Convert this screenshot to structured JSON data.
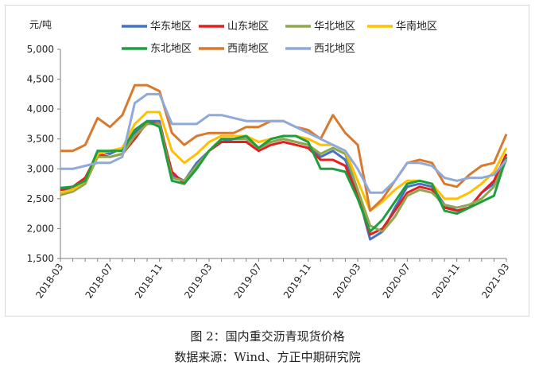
{
  "caption": {
    "line1": "图 2：国内重交沥青现货价格",
    "line2": "数据来源：Wind、方正中期研究院"
  },
  "chart_data": {
    "type": "line",
    "unit_label": "元/吨",
    "ylim": [
      1500,
      5000
    ],
    "yticks": [
      1500,
      2000,
      2500,
      3000,
      3500,
      4000,
      4500,
      5000
    ],
    "ytick_labels": [
      "1,500",
      "2,000",
      "2,500",
      "3,000",
      "3,500",
      "4,000",
      "4,500",
      "5,000"
    ],
    "xlim": [
      "2018-03",
      "2021-03"
    ],
    "xtick_labels": [
      "2018-03",
      "2018-07",
      "2018-11",
      "2019-03",
      "2019-07",
      "2019-11",
      "2020-03",
      "2020-07",
      "2020-11",
      "2021-03"
    ],
    "grid": false,
    "legend_position": "top",
    "series": [
      {
        "name": "华东地区",
        "color": "#4472C4",
        "points": [
          [
            "2018-03",
            2650
          ],
          [
            "2018-04",
            2650
          ],
          [
            "2018-05",
            2800
          ],
          [
            "2018-06",
            3300
          ],
          [
            "2018-07",
            3250
          ],
          [
            "2018-08",
            3350
          ],
          [
            "2018-09",
            3600
          ],
          [
            "2018-10",
            3800
          ],
          [
            "2018-11",
            3800
          ],
          [
            "2018-12",
            2900
          ],
          [
            "2019-01",
            2800
          ],
          [
            "2019-02",
            3100
          ],
          [
            "2019-03",
            3300
          ],
          [
            "2019-04",
            3450
          ],
          [
            "2019-05",
            3500
          ],
          [
            "2019-06",
            3500
          ],
          [
            "2019-07",
            3350
          ],
          [
            "2019-08",
            3450
          ],
          [
            "2019-09",
            3500
          ],
          [
            "2019-10",
            3450
          ],
          [
            "2019-11",
            3400
          ],
          [
            "2019-12",
            3200
          ],
          [
            "2020-01",
            3300
          ],
          [
            "2020-02",
            3150
          ],
          [
            "2020-03",
            2600
          ],
          [
            "2020-04",
            1820
          ],
          [
            "2020-05",
            1950
          ],
          [
            "2020-06",
            2350
          ],
          [
            "2020-07",
            2700
          ],
          [
            "2020-08",
            2750
          ],
          [
            "2020-09",
            2700
          ],
          [
            "2020-10",
            2400
          ],
          [
            "2020-11",
            2300
          ],
          [
            "2020-12",
            2350
          ],
          [
            "2021-01",
            2600
          ],
          [
            "2021-02",
            2750
          ],
          [
            "2021-03",
            3150
          ]
        ]
      },
      {
        "name": "山东地区",
        "color": "#E32020",
        "points": [
          [
            "2018-03",
            2650
          ],
          [
            "2018-04",
            2700
          ],
          [
            "2018-05",
            2850
          ],
          [
            "2018-06",
            3250
          ],
          [
            "2018-07",
            3200
          ],
          [
            "2018-08",
            3250
          ],
          [
            "2018-09",
            3500
          ],
          [
            "2018-10",
            3780
          ],
          [
            "2018-11",
            3750
          ],
          [
            "2018-12",
            2950
          ],
          [
            "2019-01",
            2750
          ],
          [
            "2019-02",
            3050
          ],
          [
            "2019-03",
            3300
          ],
          [
            "2019-04",
            3450
          ],
          [
            "2019-05",
            3450
          ],
          [
            "2019-06",
            3450
          ],
          [
            "2019-07",
            3300
          ],
          [
            "2019-08",
            3400
          ],
          [
            "2019-09",
            3450
          ],
          [
            "2019-10",
            3400
          ],
          [
            "2019-11",
            3350
          ],
          [
            "2019-12",
            3150
          ],
          [
            "2020-01",
            3150
          ],
          [
            "2020-02",
            3050
          ],
          [
            "2020-03",
            2550
          ],
          [
            "2020-04",
            1900
          ],
          [
            "2020-05",
            2000
          ],
          [
            "2020-06",
            2300
          ],
          [
            "2020-07",
            2600
          ],
          [
            "2020-08",
            2700
          ],
          [
            "2020-09",
            2650
          ],
          [
            "2020-10",
            2350
          ],
          [
            "2020-11",
            2300
          ],
          [
            "2020-12",
            2350
          ],
          [
            "2021-01",
            2600
          ],
          [
            "2021-02",
            2800
          ],
          [
            "2021-03",
            3250
          ]
        ]
      },
      {
        "name": "华北地区",
        "color": "#8FA84E",
        "points": [
          [
            "2018-03",
            2560
          ],
          [
            "2018-04",
            2620
          ],
          [
            "2018-05",
            2750
          ],
          [
            "2018-06",
            3200
          ],
          [
            "2018-07",
            3200
          ],
          [
            "2018-08",
            3250
          ],
          [
            "2018-09",
            3550
          ],
          [
            "2018-10",
            3750
          ],
          [
            "2018-11",
            3750
          ],
          [
            "2018-12",
            2850
          ],
          [
            "2019-01",
            2800
          ],
          [
            "2019-02",
            3050
          ],
          [
            "2019-03",
            3300
          ],
          [
            "2019-04",
            3500
          ],
          [
            "2019-05",
            3500
          ],
          [
            "2019-06",
            3500
          ],
          [
            "2019-07",
            3350
          ],
          [
            "2019-08",
            3450
          ],
          [
            "2019-09",
            3500
          ],
          [
            "2019-10",
            3450
          ],
          [
            "2019-11",
            3400
          ],
          [
            "2019-12",
            3250
          ],
          [
            "2020-01",
            3350
          ],
          [
            "2020-02",
            3250
          ],
          [
            "2020-03",
            2650
          ],
          [
            "2020-04",
            2050
          ],
          [
            "2020-05",
            1950
          ],
          [
            "2020-06",
            2200
          ],
          [
            "2020-07",
            2550
          ],
          [
            "2020-08",
            2650
          ],
          [
            "2020-09",
            2600
          ],
          [
            "2020-10",
            2400
          ],
          [
            "2020-11",
            2350
          ],
          [
            "2020-12",
            2400
          ],
          [
            "2021-01",
            2500
          ],
          [
            "2021-02",
            2700
          ],
          [
            "2021-03",
            3150
          ]
        ]
      },
      {
        "name": "华南地区",
        "color": "#FFC000",
        "points": [
          [
            "2018-03",
            2600
          ],
          [
            "2018-04",
            2650
          ],
          [
            "2018-05",
            2800
          ],
          [
            "2018-06",
            3250
          ],
          [
            "2018-07",
            3300
          ],
          [
            "2018-08",
            3350
          ],
          [
            "2018-09",
            3750
          ],
          [
            "2018-10",
            3950
          ],
          [
            "2018-11",
            3950
          ],
          [
            "2018-12",
            3300
          ],
          [
            "2019-01",
            3100
          ],
          [
            "2019-02",
            3250
          ],
          [
            "2019-03",
            3450
          ],
          [
            "2019-04",
            3550
          ],
          [
            "2019-05",
            3550
          ],
          [
            "2019-06",
            3550
          ],
          [
            "2019-07",
            3450
          ],
          [
            "2019-08",
            3500
          ],
          [
            "2019-09",
            3550
          ],
          [
            "2019-10",
            3550
          ],
          [
            "2019-11",
            3500
          ],
          [
            "2019-12",
            3400
          ],
          [
            "2020-01",
            3400
          ],
          [
            "2020-02",
            3300
          ],
          [
            "2020-03",
            2800
          ],
          [
            "2020-04",
            2300
          ],
          [
            "2020-05",
            2450
          ],
          [
            "2020-06",
            2650
          ],
          [
            "2020-07",
            2800
          ],
          [
            "2020-08",
            2800
          ],
          [
            "2020-09",
            2750
          ],
          [
            "2020-10",
            2500
          ],
          [
            "2020-11",
            2500
          ],
          [
            "2020-12",
            2600
          ],
          [
            "2021-01",
            2750
          ],
          [
            "2021-02",
            2950
          ],
          [
            "2021-03",
            3350
          ]
        ]
      },
      {
        "name": "东北地区",
        "color": "#1E9E3E",
        "points": [
          [
            "2018-03",
            2680
          ],
          [
            "2018-04",
            2700
          ],
          [
            "2018-05",
            2800
          ],
          [
            "2018-06",
            3300
          ],
          [
            "2018-07",
            3300
          ],
          [
            "2018-08",
            3300
          ],
          [
            "2018-09",
            3650
          ],
          [
            "2018-10",
            3800
          ],
          [
            "2018-11",
            3700
          ],
          [
            "2018-12",
            2800
          ],
          [
            "2019-01",
            2750
          ],
          [
            "2019-02",
            3000
          ],
          [
            "2019-03",
            3300
          ],
          [
            "2019-04",
            3500
          ],
          [
            "2019-05",
            3500
          ],
          [
            "2019-06",
            3550
          ],
          [
            "2019-07",
            3350
          ],
          [
            "2019-08",
            3500
          ],
          [
            "2019-09",
            3550
          ],
          [
            "2019-10",
            3550
          ],
          [
            "2019-11",
            3450
          ],
          [
            "2019-12",
            3000
          ],
          [
            "2020-01",
            3000
          ],
          [
            "2020-02",
            2950
          ],
          [
            "2020-03",
            2500
          ],
          [
            "2020-04",
            1950
          ],
          [
            "2020-05",
            2150
          ],
          [
            "2020-06",
            2450
          ],
          [
            "2020-07",
            2750
          ],
          [
            "2020-08",
            2800
          ],
          [
            "2020-09",
            2750
          ],
          [
            "2020-10",
            2300
          ],
          [
            "2020-11",
            2250
          ],
          [
            "2020-12",
            2350
          ],
          [
            "2021-01",
            2450
          ],
          [
            "2021-02",
            2550
          ],
          [
            "2021-03",
            3200
          ]
        ]
      },
      {
        "name": "西南地区",
        "color": "#D9792E",
        "points": [
          [
            "2018-03",
            3300
          ],
          [
            "2018-04",
            3300
          ],
          [
            "2018-05",
            3400
          ],
          [
            "2018-06",
            3850
          ],
          [
            "2018-07",
            3700
          ],
          [
            "2018-08",
            3900
          ],
          [
            "2018-09",
            4400
          ],
          [
            "2018-10",
            4400
          ],
          [
            "2018-11",
            4300
          ],
          [
            "2018-12",
            3600
          ],
          [
            "2019-01",
            3400
          ],
          [
            "2019-02",
            3550
          ],
          [
            "2019-03",
            3600
          ],
          [
            "2019-04",
            3600
          ],
          [
            "2019-05",
            3600
          ],
          [
            "2019-06",
            3700
          ],
          [
            "2019-07",
            3700
          ],
          [
            "2019-08",
            3800
          ],
          [
            "2019-09",
            3800
          ],
          [
            "2019-10",
            3700
          ],
          [
            "2019-11",
            3650
          ],
          [
            "2019-12",
            3500
          ],
          [
            "2020-01",
            3900
          ],
          [
            "2020-02",
            3600
          ],
          [
            "2020-03",
            3400
          ],
          [
            "2020-04",
            2300
          ],
          [
            "2020-05",
            2500
          ],
          [
            "2020-06",
            2800
          ],
          [
            "2020-07",
            3100
          ],
          [
            "2020-08",
            3150
          ],
          [
            "2020-09",
            3100
          ],
          [
            "2020-10",
            2750
          ],
          [
            "2020-11",
            2700
          ],
          [
            "2020-12",
            2900
          ],
          [
            "2021-01",
            3050
          ],
          [
            "2021-02",
            3100
          ],
          [
            "2021-03",
            3580
          ]
        ]
      },
      {
        "name": "西北地区",
        "color": "#8EA9DB",
        "points": [
          [
            "2018-03",
            3000
          ],
          [
            "2018-04",
            3000
          ],
          [
            "2018-05",
            3050
          ],
          [
            "2018-06",
            3100
          ],
          [
            "2018-07",
            3100
          ],
          [
            "2018-08",
            3200
          ],
          [
            "2018-09",
            4100
          ],
          [
            "2018-10",
            4250
          ],
          [
            "2018-11",
            4250
          ],
          [
            "2018-12",
            3750
          ],
          [
            "2019-01",
            3750
          ],
          [
            "2019-02",
            3750
          ],
          [
            "2019-03",
            3900
          ],
          [
            "2019-04",
            3900
          ],
          [
            "2019-05",
            3850
          ],
          [
            "2019-06",
            3800
          ],
          [
            "2019-07",
            3800
          ],
          [
            "2019-08",
            3800
          ],
          [
            "2019-09",
            3800
          ],
          [
            "2019-10",
            3700
          ],
          [
            "2019-11",
            3600
          ],
          [
            "2019-12",
            3500
          ],
          [
            "2020-01",
            3400
          ],
          [
            "2020-02",
            3300
          ],
          [
            "2020-03",
            3000
          ],
          [
            "2020-04",
            2600
          ],
          [
            "2020-05",
            2600
          ],
          [
            "2020-06",
            2800
          ],
          [
            "2020-07",
            3100
          ],
          [
            "2020-08",
            3100
          ],
          [
            "2020-09",
            3050
          ],
          [
            "2020-10",
            2850
          ],
          [
            "2020-11",
            2800
          ],
          [
            "2020-12",
            2850
          ],
          [
            "2021-01",
            2850
          ],
          [
            "2021-02",
            2900
          ],
          [
            "2021-03",
            3150
          ]
        ]
      }
    ]
  }
}
